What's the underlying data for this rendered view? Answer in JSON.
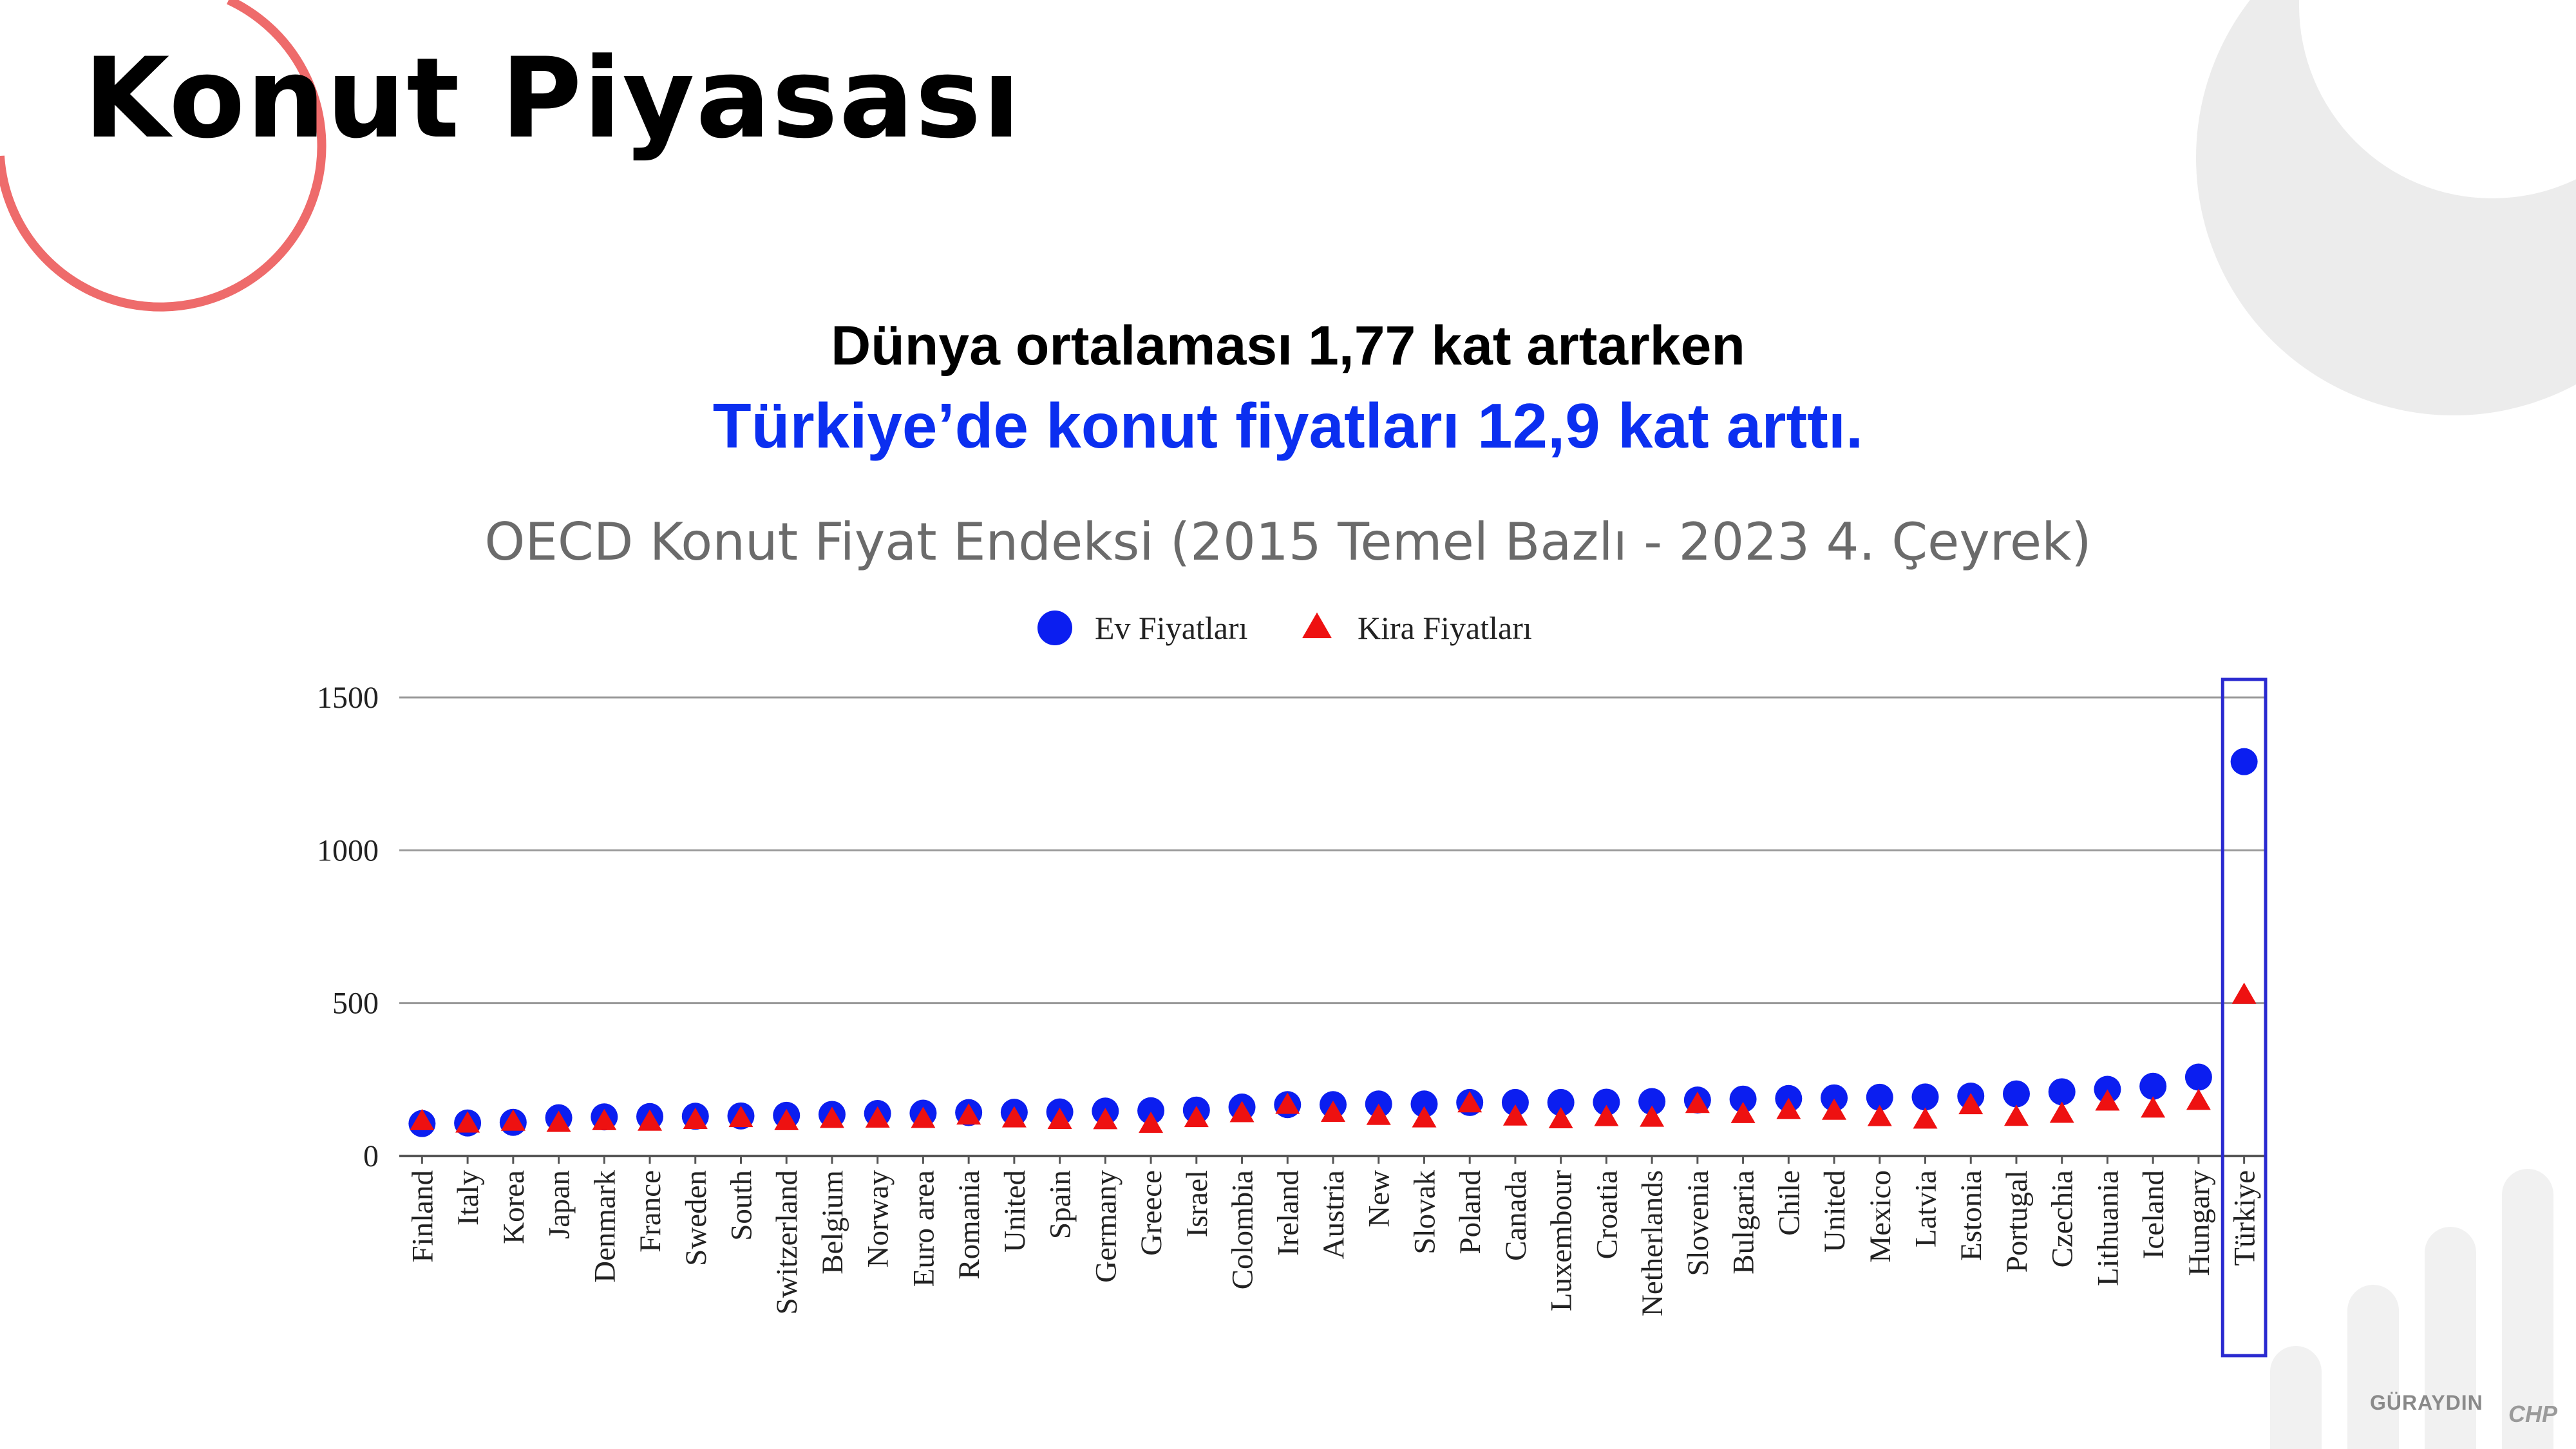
{
  "slide": {
    "title": "Konut Piyasası",
    "headline_line1": "Dünya ortalaması 1,77 kat artarken",
    "headline_line2": "Türkiye’de konut fiyatları 12,9 kat arttı.",
    "brand_name": "GÜRAYDIN",
    "brand_party": "CHP"
  },
  "colors": {
    "ev": "#0b1ef0",
    "kira": "#ee1111",
    "highlight_box": "#2a2ad0",
    "decor_ring": "#ee6b6b",
    "decor_gray": "#ececec"
  },
  "chart_data": {
    "type": "scatter",
    "title": "OECD Konut Fiyat Endeksi (2015 Temel Bazlı - 2023 4. Çeyrek)",
    "legend_position": "top-center",
    "grid": true,
    "ylim": [
      0,
      1500
    ],
    "yticks": [
      0,
      500,
      1000,
      1500
    ],
    "categories": [
      "Finland",
      "Italy",
      "Korea",
      "Japan",
      "Denmark",
      "France",
      "Sweden",
      "South",
      "Switzerland",
      "Belgium",
      "Norway",
      "Euro area",
      "Romania",
      "United",
      "Spain",
      "Germany",
      "Greece",
      "Israel",
      "Colombia",
      "Ireland",
      "Austria",
      "New",
      "Slovak",
      "Poland",
      "Canada",
      "Luxembour",
      "Croatia",
      "Netherlands",
      "Slovenia",
      "Bulgaria",
      "Chile",
      "United",
      "Mexico",
      "Latvia",
      "Estonia",
      "Portugal",
      "Czechia",
      "Lithuania",
      "Iceland",
      "Hungary",
      "Türkiye"
    ],
    "highlight_category": "Türkiye",
    "series": [
      {
        "name": "Ev Fiyatları",
        "marker": "circle",
        "values": [
          106,
          108,
          110,
          125,
          128,
          129,
          130,
          131,
          133,
          136,
          139,
          140,
          142,
          143,
          144,
          147,
          148,
          150,
          160,
          168,
          168,
          170,
          170,
          175,
          175,
          175,
          176,
          178,
          183,
          186,
          188,
          190,
          192,
          193,
          196,
          203,
          210,
          218,
          228,
          258,
          1290
        ]
      },
      {
        "name": "Kira Fiyatları",
        "marker": "triangle",
        "values": [
          112,
          104,
          110,
          106,
          112,
          110,
          116,
          122,
          112,
          119,
          120,
          119,
          130,
          121,
          116,
          115,
          103,
          122,
          138,
          165,
          139,
          129,
          121,
          170,
          127,
          118,
          125,
          123,
          168,
          135,
          148,
          146,
          125,
          117,
          164,
          126,
          136,
          176,
          153,
          178,
          525
        ]
      }
    ]
  }
}
